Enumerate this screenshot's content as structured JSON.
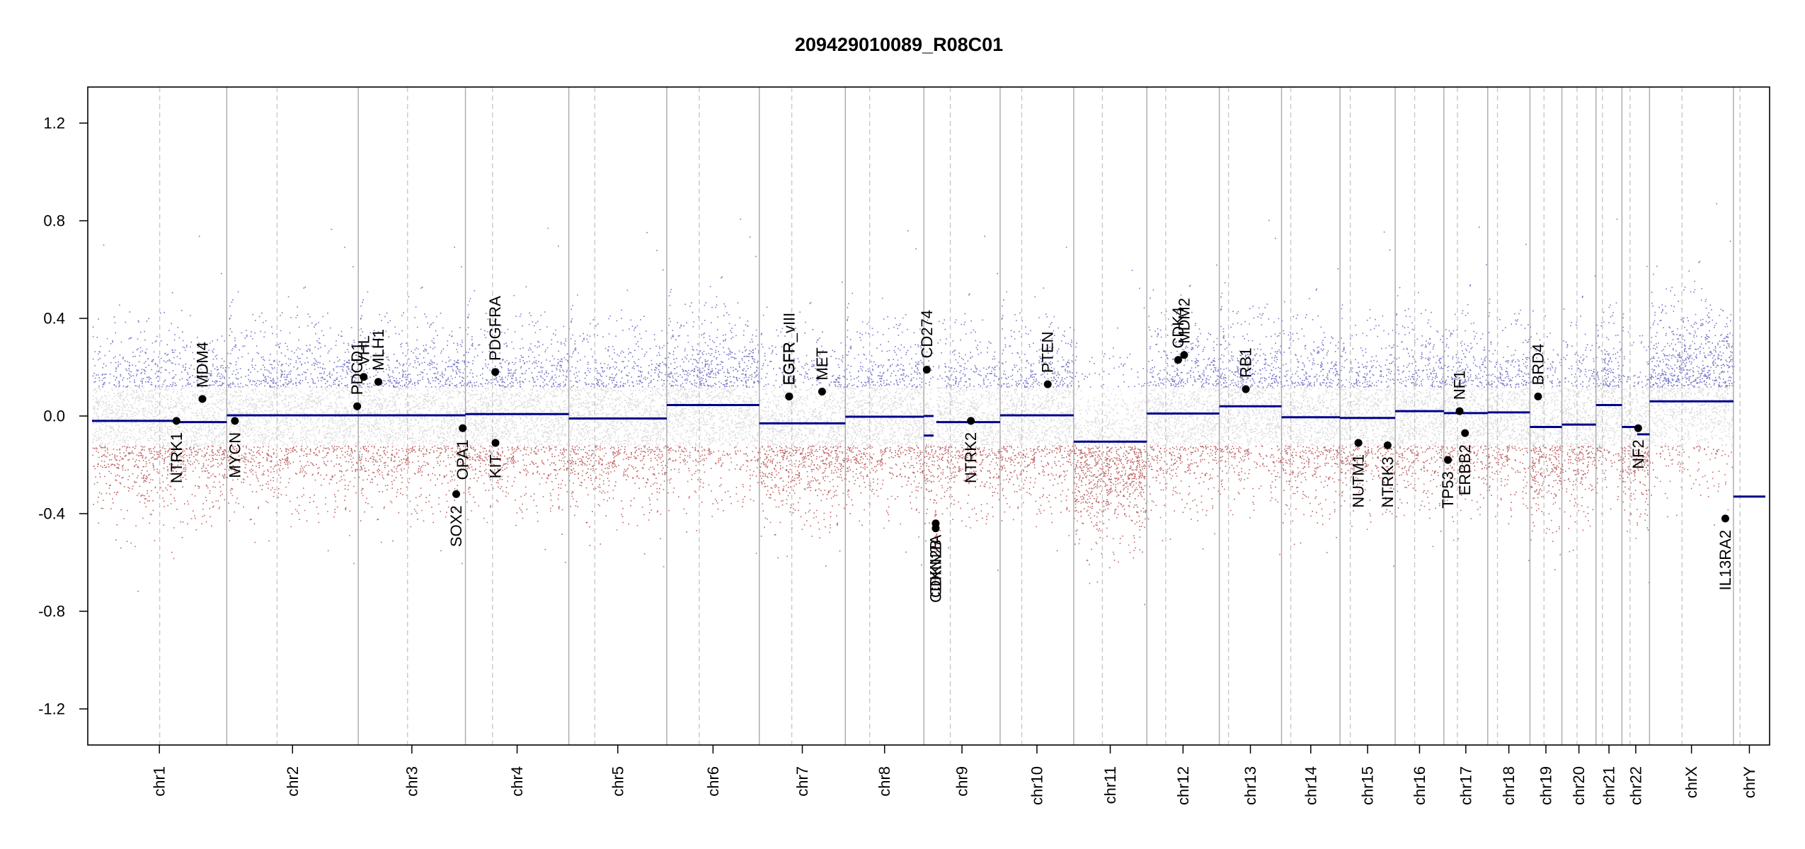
{
  "chart_data": {
    "type": "scatter",
    "title": "209429010089_R08C01",
    "xlabel": "",
    "ylabel": "",
    "ylim": [
      -1.35,
      1.35
    ],
    "yticks": [
      1.2,
      0.8,
      0.4,
      0.0,
      -0.4,
      -0.8,
      -1.2
    ],
    "ytick_labels": [
      "1.2",
      "0.8",
      "0.4",
      "0.0",
      "-0.4",
      "-0.8",
      "-1.2"
    ],
    "grid": false,
    "colors": {
      "gain": "#4b4bb4",
      "loss": "#a83232",
      "neutral": "#bdbdbd",
      "segment": "#00008b",
      "chr_boundary": "#a9a9a9",
      "centromere": "#c8c8c8",
      "gene_marker": "#000000"
    },
    "chromosomes": [
      {
        "name": "chr1",
        "length": 249,
        "centromere": 125
      },
      {
        "name": "chr2",
        "length": 243,
        "centromere": 93
      },
      {
        "name": "chr3",
        "length": 198,
        "centromere": 91
      },
      {
        "name": "chr4",
        "length": 191,
        "centromere": 50
      },
      {
        "name": "chr5",
        "length": 181,
        "centromere": 48
      },
      {
        "name": "chr6",
        "length": 171,
        "centromere": 60
      },
      {
        "name": "chr7",
        "length": 159,
        "centromere": 60
      },
      {
        "name": "chr8",
        "length": 145,
        "centromere": 45
      },
      {
        "name": "chr9",
        "length": 141,
        "centromere": 49
      },
      {
        "name": "chr10",
        "length": 136,
        "centromere": 40
      },
      {
        "name": "chr11",
        "length": 135,
        "centromere": 53
      },
      {
        "name": "chr12",
        "length": 134,
        "centromere": 35
      },
      {
        "name": "chr13",
        "length": 115,
        "centromere": 17
      },
      {
        "name": "chr14",
        "length": 108,
        "centromere": 17
      },
      {
        "name": "chr15",
        "length": 102,
        "centromere": 19
      },
      {
        "name": "chr16",
        "length": 90,
        "centromere": 36
      },
      {
        "name": "chr17",
        "length": 81,
        "centromere": 25
      },
      {
        "name": "chr18",
        "length": 78,
        "centromere": 18
      },
      {
        "name": "chr19",
        "length": 59,
        "centromere": 26
      },
      {
        "name": "chr20",
        "length": 63,
        "centromere": 28
      },
      {
        "name": "chr21",
        "length": 48,
        "centromere": 12
      },
      {
        "name": "chr22",
        "length": 51,
        "centromere": 15
      },
      {
        "name": "chrX",
        "length": 155,
        "centromere": 60
      },
      {
        "name": "chrY",
        "length": 59,
        "centromere": 12
      }
    ],
    "segments": [
      {
        "chr": "chr1",
        "start": 0,
        "end": 150,
        "value": -0.02
      },
      {
        "chr": "chr1",
        "start": 150,
        "end": 249,
        "value": -0.025
      },
      {
        "chr": "chr2",
        "start": 0,
        "end": 243,
        "value": 0.003
      },
      {
        "chr": "chr3",
        "start": 0,
        "end": 198,
        "value": 0.003
      },
      {
        "chr": "chr4",
        "start": 0,
        "end": 191,
        "value": 0.008
      },
      {
        "chr": "chr5",
        "start": 0,
        "end": 181,
        "value": -0.01
      },
      {
        "chr": "chr6",
        "start": 0,
        "end": 171,
        "value": 0.045
      },
      {
        "chr": "chr7",
        "start": 0,
        "end": 159,
        "value": -0.03
      },
      {
        "chr": "chr8",
        "start": 0,
        "end": 145,
        "value": -0.003
      },
      {
        "chr": "chr9",
        "start": 0,
        "end": 18,
        "value": 0.0
      },
      {
        "chr": "chr9",
        "start": 0,
        "end": 18,
        "value": -0.08
      },
      {
        "chr": "chr9",
        "start": 18,
        "end": 23,
        "value": -0.47
      },
      {
        "chr": "chr9",
        "start": 23,
        "end": 141,
        "value": -0.025
      },
      {
        "chr": "chr10",
        "start": 0,
        "end": 136,
        "value": 0.003
      },
      {
        "chr": "chr11",
        "start": 0,
        "end": 135,
        "value": -0.105
      },
      {
        "chr": "chr12",
        "start": 0,
        "end": 134,
        "value": 0.01
      },
      {
        "chr": "chr13",
        "start": 0,
        "end": 115,
        "value": 0.04
      },
      {
        "chr": "chr14",
        "start": 0,
        "end": 108,
        "value": -0.005
      },
      {
        "chr": "chr15",
        "start": 0,
        "end": 102,
        "value": -0.008
      },
      {
        "chr": "chr16",
        "start": 0,
        "end": 90,
        "value": 0.02
      },
      {
        "chr": "chr17",
        "start": 0,
        "end": 81,
        "value": 0.012
      },
      {
        "chr": "chr18",
        "start": 0,
        "end": 78,
        "value": 0.015
      },
      {
        "chr": "chr19",
        "start": 0,
        "end": 59,
        "value": -0.045
      },
      {
        "chr": "chr20",
        "start": 0,
        "end": 63,
        "value": -0.035
      },
      {
        "chr": "chr21",
        "start": 0,
        "end": 48,
        "value": 0.045
      },
      {
        "chr": "chr22",
        "start": 0,
        "end": 28,
        "value": -0.045
      },
      {
        "chr": "chr22",
        "start": 28,
        "end": 51,
        "value": -0.075
      },
      {
        "chr": "chrX",
        "start": 0,
        "end": 155,
        "value": 0.06
      },
      {
        "chr": "chrY",
        "start": 0,
        "end": 59,
        "value": -0.33
      }
    ],
    "genes": [
      {
        "name": "NTRK1",
        "chr": "chr1",
        "pos": 156,
        "value": -0.02,
        "side": "below"
      },
      {
        "name": "MDM4",
        "chr": "chr1",
        "pos": 204,
        "value": 0.07,
        "side": "above"
      },
      {
        "name": "MYCN",
        "chr": "chr2",
        "pos": 15,
        "value": -0.02,
        "side": "below"
      },
      {
        "name": "PDCD1",
        "chr": "chr2",
        "pos": 241,
        "value": 0.04,
        "side": "above"
      },
      {
        "name": "VHL",
        "chr": "chr3",
        "pos": 10,
        "value": 0.16,
        "side": "above"
      },
      {
        "name": "MLH1",
        "chr": "chr3",
        "pos": 37,
        "value": 0.14,
        "side": "above"
      },
      {
        "name": "SOX2",
        "chr": "chr3",
        "pos": 181,
        "value": -0.32,
        "side": "below"
      },
      {
        "name": "OPA1",
        "chr": "chr3",
        "pos": 193,
        "value": -0.05,
        "side": "below"
      },
      {
        "name": "PDGFRA",
        "chr": "chr4",
        "pos": 55,
        "value": 0.18,
        "side": "above"
      },
      {
        "name": "KIT",
        "chr": "chr4",
        "pos": 55.5,
        "value": -0.11,
        "side": "below"
      },
      {
        "name": "EGFR",
        "chr": "chr7",
        "pos": 55,
        "value": 0.08,
        "side": "above"
      },
      {
        "name": "EGFR_vIII",
        "chr": "chr7",
        "pos": 55.2,
        "value": 0.08,
        "side": "above"
      },
      {
        "name": "MET",
        "chr": "chr7",
        "pos": 116,
        "value": 0.1,
        "side": "above"
      },
      {
        "name": "CD274",
        "chr": "chr9",
        "pos": 5.5,
        "value": 0.19,
        "side": "above"
      },
      {
        "name": "CDKN2A",
        "chr": "chr9",
        "pos": 21.97,
        "value": -0.44,
        "side": "below"
      },
      {
        "name": "CDKN2B",
        "chr": "chr9",
        "pos": 22.0,
        "value": -0.46,
        "side": "below"
      },
      {
        "name": "NTRK2",
        "chr": "chr9",
        "pos": 87,
        "value": -0.02,
        "side": "below"
      },
      {
        "name": "PTEN",
        "chr": "chr10",
        "pos": 88,
        "value": 0.13,
        "side": "above"
      },
      {
        "name": "CDK4",
        "chr": "chr12",
        "pos": 58,
        "value": 0.23,
        "side": "above"
      },
      {
        "name": "MDM2",
        "chr": "chr12",
        "pos": 69,
        "value": 0.25,
        "side": "above"
      },
      {
        "name": "RB1",
        "chr": "chr13",
        "pos": 49,
        "value": 0.11,
        "side": "above"
      },
      {
        "name": "NUTM1",
        "chr": "chr15",
        "pos": 34,
        "value": -0.11,
        "side": "below"
      },
      {
        "name": "NTRK3",
        "chr": "chr15",
        "pos": 88,
        "value": -0.12,
        "side": "below"
      },
      {
        "name": "TP53",
        "chr": "chr17",
        "pos": 7.5,
        "value": -0.18,
        "side": "below"
      },
      {
        "name": "NF1",
        "chr": "chr17",
        "pos": 29,
        "value": 0.02,
        "side": "above"
      },
      {
        "name": "ERBB2",
        "chr": "chr17",
        "pos": 39,
        "value": -0.07,
        "side": "below"
      },
      {
        "name": "BRD4",
        "chr": "chr19",
        "pos": 15,
        "value": 0.08,
        "side": "above"
      },
      {
        "name": "NF2",
        "chr": "chr22",
        "pos": 30,
        "value": -0.05,
        "side": "below"
      },
      {
        "name": "IL13RA2",
        "chr": "chrX",
        "pos": 140,
        "value": -0.42,
        "side": "below"
      }
    ],
    "probe_profile": {
      "base_spread": 0.2,
      "chr_offsets": {
        "chr7": -0.05,
        "chr11": -0.1,
        "chr19": -0.05,
        "chrX": 0.08
      }
    }
  }
}
